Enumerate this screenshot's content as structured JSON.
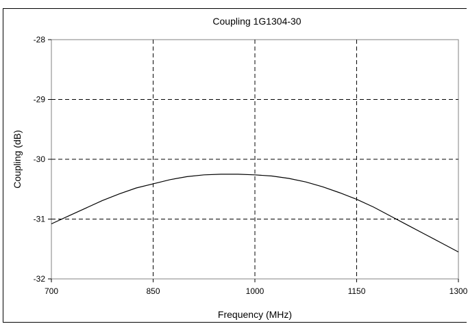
{
  "chart_data": {
    "type": "line",
    "title": "Coupling 1G1304-30",
    "xlabel": "Frequency (MHz)",
    "ylabel": "Coupling (dB)",
    "xlim": [
      700,
      1300
    ],
    "ylim": [
      -32,
      -28
    ],
    "xticks": [
      700,
      850,
      1000,
      1150,
      1300
    ],
    "yticks": [
      -28,
      -29,
      -30,
      -31,
      -32
    ],
    "xtick_labels": [
      "700",
      "850",
      "1000",
      "1150",
      "1300"
    ],
    "ytick_labels": [
      "-28",
      "-29",
      "-30",
      "-31",
      "-32"
    ],
    "grid": true,
    "grid_style": "dashed",
    "legend": "none",
    "series": [
      {
        "color": "#000000",
        "x": [
          700,
          725,
          750,
          775,
          800,
          825,
          850,
          875,
          900,
          925,
          950,
          975,
          1000,
          1025,
          1050,
          1075,
          1100,
          1125,
          1150,
          1175,
          1200,
          1225,
          1250,
          1275,
          1300
        ],
        "y": [
          -31.08,
          -30.95,
          -30.82,
          -30.69,
          -30.58,
          -30.48,
          -30.41,
          -30.34,
          -30.29,
          -30.26,
          -30.25,
          -30.25,
          -30.26,
          -30.28,
          -30.32,
          -30.38,
          -30.46,
          -30.56,
          -30.67,
          -30.8,
          -30.95,
          -31.1,
          -31.25,
          -31.4,
          -31.55
        ]
      }
    ]
  }
}
